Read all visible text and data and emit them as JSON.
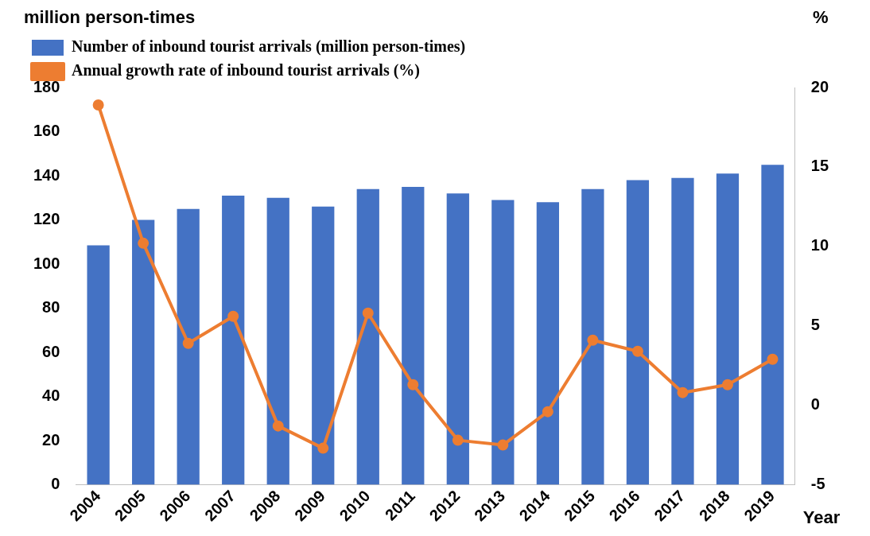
{
  "chart_data": {
    "type": "bar",
    "ylabel": "million person-times",
    "y2label": "%",
    "xlabel": "Year",
    "categories": [
      "2004",
      "2005",
      "2006",
      "2007",
      "2008",
      "2009",
      "2010",
      "2011",
      "2012",
      "2013",
      "2014",
      "2015",
      "2016",
      "2017",
      "2018",
      "2019"
    ],
    "series": [
      {
        "name": "Number of inbound tourist arrivals (million person-times)",
        "color": "#4472c4",
        "values": [
          108.5,
          120,
          125,
          131,
          130,
          126,
          134,
          135,
          132,
          129,
          128,
          134,
          138,
          139,
          141,
          145
        ]
      },
      {
        "name": "Annual growth rate of inbound tourist arrivals (%)",
        "type": "line",
        "axis": "y2",
        "color": "#ed7d31",
        "marker": "circle",
        "values": [
          18.9,
          10.2,
          3.9,
          5.6,
          -1.3,
          -2.7,
          5.8,
          1.3,
          -2.2,
          -2.5,
          -0.4,
          4.1,
          3.4,
          0.8,
          1.3,
          2.9
        ]
      }
    ],
    "ylim": [
      0,
      180
    ],
    "yticks": [
      0,
      20,
      40,
      60,
      80,
      100,
      120,
      140,
      160,
      180
    ],
    "y2lim": [
      -5,
      20
    ],
    "y2ticks": [
      -5,
      0,
      5,
      10,
      15,
      20
    ],
    "grid": false,
    "legend": "top left"
  }
}
